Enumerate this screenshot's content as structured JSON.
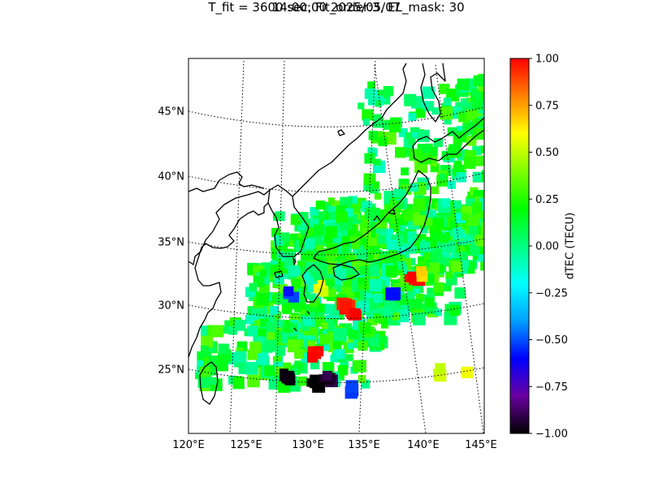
{
  "title": {
    "line1": "14:00:00 2025/05/07",
    "line2": "T_fit = 3600 sec, Fit_order:3, EL_mask: 30"
  },
  "map": {
    "lat_ticks": [
      {
        "value": 45,
        "label": "45°N"
      },
      {
        "value": 40,
        "label": "40°N"
      },
      {
        "value": 35,
        "label": "35°N"
      },
      {
        "value": 30,
        "label": "30°N"
      },
      {
        "value": 25,
        "label": "25°N"
      }
    ],
    "lon_ticks": [
      {
        "value": 120,
        "label": "120°E"
      },
      {
        "value": 125,
        "label": "125°E"
      },
      {
        "value": 130,
        "label": "130°E"
      },
      {
        "value": 135,
        "label": "135°E"
      },
      {
        "value": 140,
        "label": "140°E"
      },
      {
        "value": 145,
        "label": "145°E"
      }
    ]
  },
  "colorbar": {
    "label": "dTEC (TECU)",
    "range": [
      -1.0,
      1.0
    ],
    "ticks": [
      {
        "value": 1.0,
        "label": "1.00"
      },
      {
        "value": 0.75,
        "label": "0.75"
      },
      {
        "value": 0.5,
        "label": "0.50"
      },
      {
        "value": 0.25,
        "label": "0.25"
      },
      {
        "value": 0.0,
        "label": "0.00"
      },
      {
        "value": -0.25,
        "label": "−0.25"
      },
      {
        "value": -0.5,
        "label": "−0.50"
      },
      {
        "value": -0.75,
        "label": "−0.75"
      },
      {
        "value": -1.0,
        "label": "−1.00"
      }
    ],
    "colormap": [
      "#000000",
      "#6a00a0",
      "#0000ff",
      "#00a0ff",
      "#00ffff",
      "#00ff80",
      "#00ff00",
      "#80ff00",
      "#ffff00",
      "#ff8000",
      "#ff0000"
    ]
  },
  "chart_data": {
    "type": "heatmap",
    "title": "14:00:00 2025/05/07 / T_fit = 3600 sec, Fit_order:3, EL_mask: 30",
    "value_label": "dTEC (TECU)",
    "value_range": [
      -1.0,
      1.0
    ],
    "lon_range": [
      120,
      145
    ],
    "lat_range": [
      20,
      49
    ],
    "observed_anomalies": [
      {
        "lon": 133.0,
        "lat": 30.0,
        "value": 0.95
      },
      {
        "lon": 133.8,
        "lat": 29.5,
        "value": 1.0
      },
      {
        "lon": 130.5,
        "lat": 26.3,
        "value": 1.0
      },
      {
        "lon": 138.8,
        "lat": 32.2,
        "value": 1.0
      },
      {
        "lon": 139.5,
        "lat": 32.6,
        "value": 0.7
      },
      {
        "lon": 128.0,
        "lat": 24.6,
        "value": -1.0
      },
      {
        "lon": 130.5,
        "lat": 24.2,
        "value": -1.0
      },
      {
        "lon": 131.5,
        "lat": 24.5,
        "value": -0.95
      },
      {
        "lon": 133.5,
        "lat": 23.7,
        "value": -0.55
      },
      {
        "lon": 137.2,
        "lat": 30.8,
        "value": -0.55
      },
      {
        "lon": 128.5,
        "lat": 31.0,
        "value": -0.55
      },
      {
        "lon": 143.3,
        "lat": 24.7,
        "value": 0.6
      },
      {
        "lon": 141.2,
        "lat": 25.0,
        "value": 0.5
      },
      {
        "lon": 131.0,
        "lat": 31.5,
        "value": 0.55
      }
    ]
  }
}
